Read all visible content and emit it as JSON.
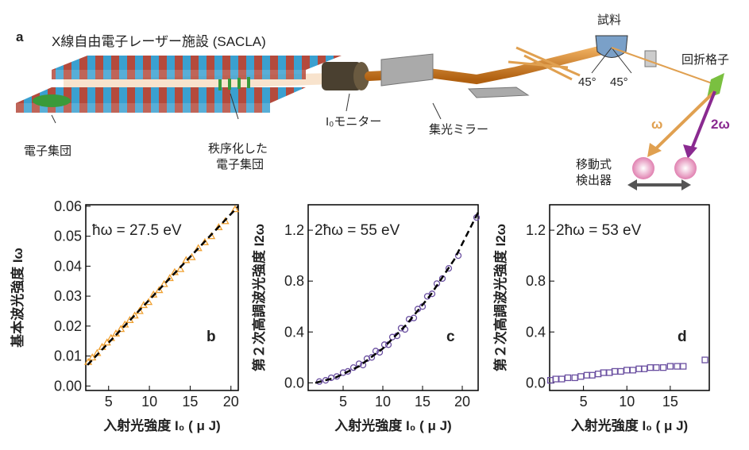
{
  "diagram": {
    "panel": "a",
    "title": "X線自由電子レーザー施設 (SACLA)",
    "electron_bunch": "電子集団",
    "ordered_bunch": [
      "秩序化した",
      "電子集団"
    ],
    "monitor": "I₀モニター",
    "mirror": "集光ミラー",
    "sample": "試料",
    "angle_in": "45°",
    "angle_out": "45°",
    "grating": "回折格子",
    "omega": "ω",
    "two_omega": "2ω",
    "detector": [
      "移動式",
      "検出器"
    ]
  },
  "chart_data": [
    {
      "type": "scatter",
      "panel": "b",
      "annotation": "ħω = 27.5 eV",
      "ylabel": "基本波光強度 Iω",
      "xlabel": "入射光強度 I₀ ( μ J)",
      "marker": "triangle",
      "xlim": [
        2.2,
        20.9
      ],
      "ylim": [
        -0.0015,
        0.0605
      ],
      "xticks": [
        5,
        10,
        15,
        20
      ],
      "yticks": [
        {
          "value": 0,
          "label": "0.00"
        },
        0.01,
        0.02,
        0.03,
        0.04,
        0.05,
        0.06
      ],
      "x": [
        2.5,
        3,
        3.6,
        4.2,
        4.8,
        5.3,
        5.9,
        6.5,
        7,
        7.6,
        8.2,
        8.8,
        9.3,
        9.9,
        10.5,
        11.2,
        11.8,
        12.5,
        13.1,
        13.8,
        14.5,
        15.2,
        16,
        16.8,
        17.6,
        18.5,
        19.3,
        20.5
      ],
      "series": [
        {
          "color": "#f0a030",
          "values": [
            0.008,
            0.0095,
            0.011,
            0.013,
            0.0145,
            0.016,
            0.0175,
            0.019,
            0.0205,
            0.022,
            0.0235,
            0.025,
            0.027,
            0.028,
            0.0305,
            0.032,
            0.034,
            0.036,
            0.038,
            0.039,
            0.042,
            0.043,
            0.046,
            0.048,
            0.05,
            0.053,
            0.055,
            0.059
          ]
        }
      ],
      "fit": {
        "color": "#000000",
        "x": [
          2.4,
          20.9
        ],
        "values": [
          0.007,
          0.06
        ]
      }
    },
    {
      "type": "scatter",
      "panel": "c",
      "annotation": "2ħω = 55 eV",
      "ylabel": "第２次高調波光強度 I2ω",
      "xlabel": "入射光強度 I₀ ( μ J)",
      "marker": "circle",
      "xlim": [
        0.6,
        22
      ],
      "ylim": [
        -0.06,
        1.4
      ],
      "xticks": [
        5,
        10,
        15,
        20
      ],
      "yticks": [
        {
          "value": 0,
          "label": "0.0"
        },
        0.4,
        0.8,
        1.2
      ],
      "x": [
        2,
        2.8,
        3.5,
        4.2,
        5,
        5.6,
        6.3,
        7,
        7.5,
        8,
        8.6,
        9.1,
        9.6,
        10.2,
        10.7,
        11.2,
        11.8,
        12.3,
        12.8,
        13.3,
        13.9,
        14.4,
        15,
        15.6,
        16.2,
        16.8,
        17.5,
        18.3,
        19.5,
        21.8
      ],
      "series": [
        {
          "color": "#6a4fa0",
          "values": [
            0.01,
            0.02,
            0.04,
            0.05,
            0.08,
            0.09,
            0.12,
            0.15,
            0.14,
            0.19,
            0.2,
            0.25,
            0.24,
            0.3,
            0.3,
            0.36,
            0.37,
            0.43,
            0.42,
            0.5,
            0.51,
            0.58,
            0.6,
            0.68,
            0.7,
            0.78,
            0.82,
            0.9,
            1.0,
            1.3
          ]
        }
      ],
      "fit": {
        "color": "#000000",
        "x": [
          1.5,
          4,
          7,
          10,
          13,
          16,
          19,
          22
        ],
        "values": [
          0.0,
          0.04,
          0.13,
          0.27,
          0.46,
          0.69,
          0.97,
          1.34
        ]
      }
    },
    {
      "type": "scatter",
      "panel": "d",
      "annotation": "2ħω = 53 eV",
      "ylabel": "第２次高調波光強度 I2ω",
      "xlabel": "入射光強度 I₀ ( μ J)",
      "marker": "square",
      "xlim": [
        1.1,
        19.5
      ],
      "ylim": [
        -0.06,
        1.4
      ],
      "xticks": [
        5,
        10,
        15
      ],
      "yticks": [
        {
          "value": 0,
          "label": "0.0"
        },
        0.4,
        0.8,
        1.2
      ],
      "x": [
        1.2,
        1.8,
        2.5,
        3.2,
        4,
        4.7,
        5.4,
        6,
        6.7,
        7.3,
        8,
        8.6,
        9.3,
        10,
        10.7,
        11.4,
        12,
        12.7,
        13.4,
        14.2,
        15,
        15.8,
        16.5,
        19
      ],
      "series": [
        {
          "color": "#6a4fa0",
          "values": [
            0.02,
            0.03,
            0.03,
            0.04,
            0.04,
            0.05,
            0.06,
            0.06,
            0.07,
            0.08,
            0.08,
            0.09,
            0.09,
            0.1,
            0.1,
            0.11,
            0.11,
            0.12,
            0.12,
            0.12,
            0.13,
            0.13,
            0.13,
            0.18
          ]
        }
      ]
    }
  ]
}
